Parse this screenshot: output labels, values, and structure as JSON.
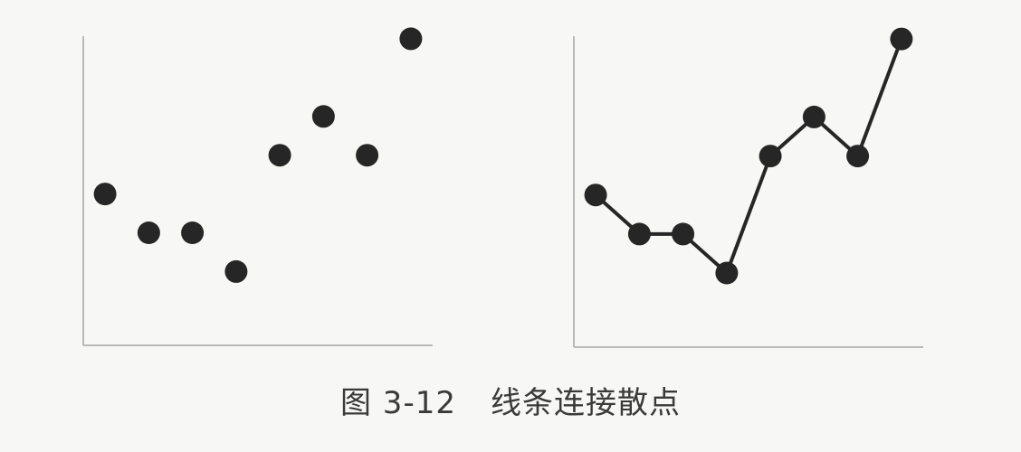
{
  "caption": {
    "figure_number": "图 3-12",
    "title": "线条连接散点"
  },
  "chart_data": [
    {
      "type": "scatter",
      "x": [
        1,
        2,
        3,
        4,
        5,
        6,
        7,
        8
      ],
      "y": [
        3,
        2,
        2,
        1,
        4,
        5,
        4,
        7
      ],
      "xlim": [
        0.5,
        8.5
      ],
      "ylim": [
        -0.9,
        8.0
      ],
      "grid": false,
      "connected": false,
      "marker_color": "#262626",
      "axis_color": "#b9b9b9"
    },
    {
      "type": "line",
      "x": [
        1,
        2,
        3,
        4,
        5,
        6,
        7,
        8
      ],
      "y": [
        3,
        2,
        2,
        1,
        4,
        5,
        4,
        7
      ],
      "xlim": [
        0.5,
        8.5
      ],
      "ylim": [
        -0.9,
        8.0
      ],
      "grid": false,
      "connected": true,
      "markers": true,
      "marker_color": "#262626",
      "line_color": "#262626",
      "axis_color": "#b9b9b9"
    }
  ]
}
